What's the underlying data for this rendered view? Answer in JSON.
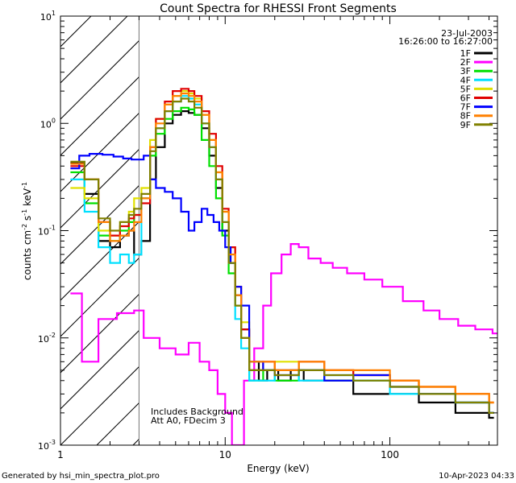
{
  "chart_data": {
    "type": "line",
    "title": "Count Spectra for RHESSI Front Segments",
    "xlabel": "Energy (keV)",
    "ylabel_main": "counts cm",
    "ylabel_sup1": "-2",
    "ylabel_mid1": " s",
    "ylabel_sup2": "-1",
    "ylabel_mid2": " keV",
    "ylabel_sup3": "-1",
    "x_scale": "log",
    "y_scale": "log",
    "xlim": [
      1,
      450
    ],
    "ylim": [
      0.001,
      10
    ],
    "x_ticks": [
      {
        "value": 1,
        "label": "1"
      },
      {
        "value": 10,
        "label": "10"
      },
      {
        "value": 100,
        "label": "100"
      }
    ],
    "y_ticks": [
      {
        "value": 10,
        "base": "10",
        "exp": "1"
      },
      {
        "value": 1,
        "base": "10",
        "exp": "0"
      },
      {
        "value": 0.1,
        "base": "10",
        "exp": "-1"
      },
      {
        "value": 0.01,
        "base": "10",
        "exp": "-2"
      },
      {
        "value": 0.001,
        "base": "10",
        "exp": "-3"
      }
    ],
    "hatched_region_x": [
      1,
      3
    ],
    "legend_date": "23-Jul-2003",
    "legend_time": "16:26:00 to 16:27:00",
    "annotation_line1": "Includes Background",
    "annotation_line2": "Att A0, FDecim 3",
    "series": [
      {
        "name": "1F",
        "color": "#000000",
        "points": [
          [
            1.15,
            0.43
          ],
          [
            1.4,
            0.22
          ],
          [
            1.7,
            0.08
          ],
          [
            2.0,
            0.07
          ],
          [
            2.3,
            0.09
          ],
          [
            2.6,
            0.1
          ],
          [
            2.8,
            0.06
          ],
          [
            3.1,
            0.08
          ],
          [
            3.5,
            0.3
          ],
          [
            3.8,
            0.6
          ],
          [
            4.3,
            1.0
          ],
          [
            4.8,
            1.2
          ],
          [
            5.4,
            1.3
          ],
          [
            6.0,
            1.25
          ],
          [
            6.5,
            1.2
          ],
          [
            7.2,
            0.9
          ],
          [
            8.0,
            0.5
          ],
          [
            8.8,
            0.25
          ],
          [
            9.6,
            0.1
          ],
          [
            10.5,
            0.05
          ],
          [
            11.5,
            0.025
          ],
          [
            12.5,
            0.012
          ],
          [
            14,
            0.006
          ],
          [
            16,
            0.004
          ],
          [
            18,
            0.005
          ],
          [
            21,
            0.004
          ],
          [
            25,
            0.005
          ],
          [
            30,
            0.004
          ],
          [
            40,
            0.004
          ],
          [
            60,
            0.003
          ],
          [
            100,
            0.003
          ],
          [
            150,
            0.0025
          ],
          [
            250,
            0.002
          ],
          [
            400,
            0.0018
          ]
        ]
      },
      {
        "name": "2F",
        "color": "#ff00ff",
        "points": [
          [
            1.15,
            0.026
          ],
          [
            1.35,
            0.006
          ],
          [
            1.7,
            0.015
          ],
          [
            2.2,
            0.017
          ],
          [
            2.8,
            0.018
          ],
          [
            3.2,
            0.01
          ],
          [
            4.0,
            0.008
          ],
          [
            5.0,
            0.007
          ],
          [
            6.0,
            0.009
          ],
          [
            7.0,
            0.006
          ],
          [
            8.0,
            0.005
          ],
          [
            9.0,
            0.003
          ],
          [
            10.0,
            0.002
          ],
          [
            11.0,
            0.001
          ],
          [
            13,
            0.004
          ],
          [
            15,
            0.008
          ],
          [
            17,
            0.02
          ],
          [
            19,
            0.04
          ],
          [
            22,
            0.06
          ],
          [
            25,
            0.075
          ],
          [
            28,
            0.07
          ],
          [
            32,
            0.055
          ],
          [
            38,
            0.05
          ],
          [
            45,
            0.045
          ],
          [
            55,
            0.04
          ],
          [
            70,
            0.035
          ],
          [
            90,
            0.03
          ],
          [
            120,
            0.022
          ],
          [
            160,
            0.018
          ],
          [
            200,
            0.015
          ],
          [
            260,
            0.013
          ],
          [
            330,
            0.012
          ],
          [
            420,
            0.011
          ]
        ]
      },
      {
        "name": "3F",
        "color": "#00e000",
        "points": [
          [
            1.15,
            0.35
          ],
          [
            1.4,
            0.18
          ],
          [
            1.7,
            0.09
          ],
          [
            2.0,
            0.08
          ],
          [
            2.3,
            0.1
          ],
          [
            2.6,
            0.12
          ],
          [
            2.8,
            0.14
          ],
          [
            3.1,
            0.2
          ],
          [
            3.5,
            0.5
          ],
          [
            3.8,
            0.8
          ],
          [
            4.3,
            1.1
          ],
          [
            4.8,
            1.3
          ],
          [
            5.4,
            1.4
          ],
          [
            6.0,
            1.35
          ],
          [
            6.5,
            1.2
          ],
          [
            7.2,
            0.7
          ],
          [
            8.0,
            0.4
          ],
          [
            8.8,
            0.2
          ],
          [
            9.6,
            0.09
          ],
          [
            10.5,
            0.04
          ],
          [
            11.5,
            0.02
          ],
          [
            12.5,
            0.01
          ],
          [
            14,
            0.004
          ],
          [
            17,
            0.005
          ],
          [
            20,
            0.004
          ],
          [
            28,
            0.005
          ],
          [
            40,
            0.004
          ],
          [
            60,
            0.004
          ],
          [
            100,
            0.0035
          ],
          [
            150,
            0.003
          ],
          [
            250,
            0.0025
          ],
          [
            400,
            0.002
          ]
        ]
      },
      {
        "name": "4F",
        "color": "#00e0ff",
        "points": [
          [
            1.15,
            0.3
          ],
          [
            1.4,
            0.15
          ],
          [
            1.7,
            0.07
          ],
          [
            2.0,
            0.05
          ],
          [
            2.3,
            0.06
          ],
          [
            2.6,
            0.05
          ],
          [
            2.8,
            0.06
          ],
          [
            3.1,
            0.2
          ],
          [
            3.5,
            0.6
          ],
          [
            3.8,
            0.9
          ],
          [
            4.3,
            1.3
          ],
          [
            4.8,
            1.6
          ],
          [
            5.4,
            1.8
          ],
          [
            6.0,
            1.7
          ],
          [
            6.5,
            1.5
          ],
          [
            7.2,
            1.0
          ],
          [
            8.0,
            0.6
          ],
          [
            8.8,
            0.3
          ],
          [
            9.6,
            0.12
          ],
          [
            10.5,
            0.05
          ],
          [
            11.5,
            0.015
          ],
          [
            12.5,
            0.008
          ],
          [
            14,
            0.004
          ],
          [
            17,
            0.004
          ],
          [
            20,
            0.005
          ],
          [
            28,
            0.004
          ],
          [
            40,
            0.0045
          ],
          [
            60,
            0.004
          ],
          [
            100,
            0.003
          ],
          [
            150,
            0.003
          ],
          [
            250,
            0.0025
          ],
          [
            400,
            0.002
          ]
        ]
      },
      {
        "name": "5F",
        "color": "#e0e000",
        "points": [
          [
            1.15,
            0.25
          ],
          [
            1.4,
            0.2
          ],
          [
            1.7,
            0.1
          ],
          [
            2.0,
            0.09
          ],
          [
            2.3,
            0.12
          ],
          [
            2.6,
            0.15
          ],
          [
            2.8,
            0.2
          ],
          [
            3.1,
            0.25
          ],
          [
            3.5,
            0.7
          ],
          [
            3.8,
            1.1
          ],
          [
            4.3,
            1.5
          ],
          [
            4.8,
            1.8
          ],
          [
            5.4,
            2.0
          ],
          [
            6.0,
            1.9
          ],
          [
            6.5,
            1.7
          ],
          [
            7.2,
            1.2
          ],
          [
            8.0,
            0.7
          ],
          [
            8.8,
            0.35
          ],
          [
            9.6,
            0.15
          ],
          [
            10.5,
            0.07
          ],
          [
            11.5,
            0.03
          ],
          [
            12.5,
            0.014
          ],
          [
            14,
            0.006
          ],
          [
            17,
            0.005
          ],
          [
            20,
            0.006
          ],
          [
            28,
            0.005
          ],
          [
            40,
            0.005
          ],
          [
            60,
            0.0045
          ],
          [
            100,
            0.004
          ],
          [
            150,
            0.0035
          ],
          [
            250,
            0.003
          ],
          [
            400,
            0.0025
          ]
        ]
      },
      {
        "name": "6F",
        "color": "#e00000",
        "points": [
          [
            1.15,
            0.4
          ],
          [
            1.4,
            0.3
          ],
          [
            1.7,
            0.12
          ],
          [
            2.0,
            0.09
          ],
          [
            2.3,
            0.11
          ],
          [
            2.6,
            0.13
          ],
          [
            2.8,
            0.14
          ],
          [
            3.1,
            0.18
          ],
          [
            3.5,
            0.6
          ],
          [
            3.8,
            1.1
          ],
          [
            4.3,
            1.6
          ],
          [
            4.8,
            2.0
          ],
          [
            5.4,
            2.1
          ],
          [
            6.0,
            2.0
          ],
          [
            6.5,
            1.8
          ],
          [
            7.2,
            1.3
          ],
          [
            8.0,
            0.8
          ],
          [
            8.8,
            0.4
          ],
          [
            9.6,
            0.16
          ],
          [
            10.5,
            0.07
          ],
          [
            11.5,
            0.03
          ],
          [
            12.5,
            0.012
          ],
          [
            14,
            0.005
          ],
          [
            17,
            0.006
          ],
          [
            20,
            0.005
          ],
          [
            28,
            0.006
          ],
          [
            40,
            0.005
          ],
          [
            60,
            0.0045
          ],
          [
            100,
            0.004
          ],
          [
            150,
            0.0035
          ],
          [
            250,
            0.003
          ],
          [
            400,
            0.0025
          ]
        ]
      },
      {
        "name": "7F",
        "color": "#0000ff",
        "points": [
          [
            1.15,
            0.38
          ],
          [
            1.3,
            0.5
          ],
          [
            1.5,
            0.52
          ],
          [
            1.8,
            0.51
          ],
          [
            2.1,
            0.49
          ],
          [
            2.4,
            0.47
          ],
          [
            2.7,
            0.46
          ],
          [
            3.0,
            0.46
          ],
          [
            3.2,
            0.5
          ],
          [
            3.5,
            0.3
          ],
          [
            3.8,
            0.25
          ],
          [
            4.3,
            0.23
          ],
          [
            4.8,
            0.2
          ],
          [
            5.4,
            0.15
          ],
          [
            6.0,
            0.1
          ],
          [
            6.5,
            0.12
          ],
          [
            7.2,
            0.16
          ],
          [
            7.8,
            0.14
          ],
          [
            8.5,
            0.12
          ],
          [
            9.2,
            0.1
          ],
          [
            10.0,
            0.07
          ],
          [
            10.8,
            0.05
          ],
          [
            11.5,
            0.03
          ],
          [
            12.5,
            0.02
          ],
          [
            14,
            0.006
          ],
          [
            17,
            0.005
          ],
          [
            20,
            0.0045
          ],
          [
            28,
            0.005
          ],
          [
            40,
            0.004
          ],
          [
            60,
            0.0045
          ],
          [
            100,
            0.0035
          ],
          [
            150,
            0.003
          ],
          [
            250,
            0.0025
          ],
          [
            400,
            0.002
          ]
        ]
      },
      {
        "name": "8F",
        "color": "#ff8000",
        "points": [
          [
            1.15,
            0.42
          ],
          [
            1.4,
            0.3
          ],
          [
            1.7,
            0.12
          ],
          [
            2.0,
            0.08
          ],
          [
            2.3,
            0.09
          ],
          [
            2.6,
            0.1
          ],
          [
            2.8,
            0.12
          ],
          [
            3.1,
            0.2
          ],
          [
            3.5,
            0.6
          ],
          [
            3.8,
            1.0
          ],
          [
            4.3,
            1.5
          ],
          [
            4.8,
            1.8
          ],
          [
            5.4,
            1.9
          ],
          [
            6.0,
            1.8
          ],
          [
            6.5,
            1.6
          ],
          [
            7.2,
            1.2
          ],
          [
            8.0,
            0.7
          ],
          [
            8.8,
            0.35
          ],
          [
            9.6,
            0.15
          ],
          [
            10.5,
            0.06
          ],
          [
            11.5,
            0.025
          ],
          [
            12.5,
            0.01
          ],
          [
            14,
            0.006
          ],
          [
            17,
            0.006
          ],
          [
            20,
            0.005
          ],
          [
            28,
            0.006
          ],
          [
            40,
            0.005
          ],
          [
            60,
            0.005
          ],
          [
            100,
            0.004
          ],
          [
            150,
            0.0035
          ],
          [
            250,
            0.003
          ],
          [
            400,
            0.0025
          ]
        ]
      },
      {
        "name": "9F",
        "color": "#808000",
        "points": [
          [
            1.15,
            0.44
          ],
          [
            1.4,
            0.3
          ],
          [
            1.7,
            0.13
          ],
          [
            2.0,
            0.1
          ],
          [
            2.3,
            0.12
          ],
          [
            2.6,
            0.14
          ],
          [
            2.8,
            0.16
          ],
          [
            3.1,
            0.22
          ],
          [
            3.5,
            0.55
          ],
          [
            3.8,
            0.9
          ],
          [
            4.3,
            1.3
          ],
          [
            4.8,
            1.6
          ],
          [
            5.4,
            1.7
          ],
          [
            6.0,
            1.6
          ],
          [
            6.5,
            1.4
          ],
          [
            7.2,
            1.0
          ],
          [
            8.0,
            0.6
          ],
          [
            8.8,
            0.3
          ],
          [
            9.6,
            0.12
          ],
          [
            10.5,
            0.05
          ],
          [
            11.5,
            0.02
          ],
          [
            12.5,
            0.01
          ],
          [
            14,
            0.005
          ],
          [
            17,
            0.005
          ],
          [
            20,
            0.0045
          ],
          [
            28,
            0.005
          ],
          [
            40,
            0.0045
          ],
          [
            60,
            0.004
          ],
          [
            100,
            0.0035
          ],
          [
            150,
            0.003
          ],
          [
            250,
            0.0025
          ],
          [
            400,
            0.002
          ]
        ]
      }
    ]
  },
  "footer": {
    "left": "Generated by hsi_min_spectra_plot.pro",
    "right": "10-Apr-2023 04:33"
  }
}
